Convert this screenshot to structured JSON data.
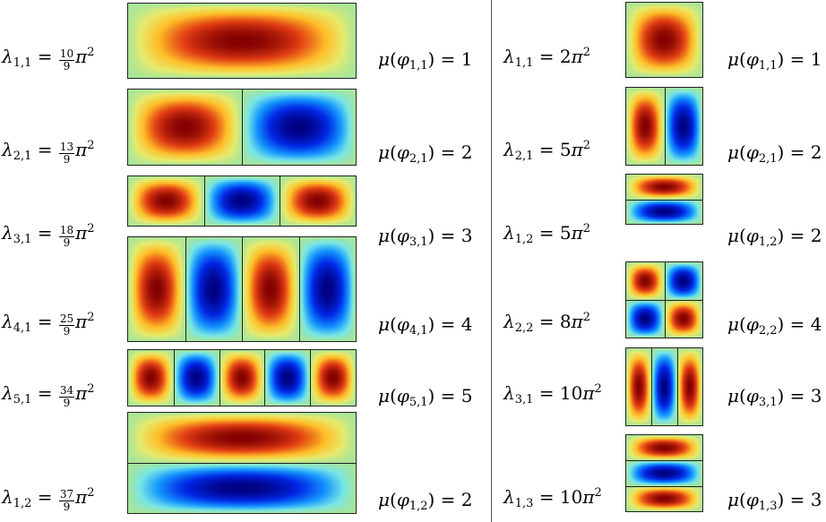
{
  "left_panel": {
    "rows": [
      {
        "m": 1,
        "n": 1,
        "eig_sub": "1,1",
        "eig_num": "10",
        "eig_den": "9",
        "mu_sub": "1,1",
        "mu_value": "1"
      },
      {
        "m": 2,
        "n": 1,
        "eig_sub": "2,1",
        "eig_num": "13",
        "eig_den": "9",
        "mu_sub": "2,1",
        "mu_value": "2"
      },
      {
        "m": 3,
        "n": 1,
        "eig_sub": "3,1",
        "eig_num": "18",
        "eig_den": "9",
        "mu_sub": "3,1",
        "mu_value": "3"
      },
      {
        "m": 4,
        "n": 1,
        "eig_sub": "4,1",
        "eig_num": "25",
        "eig_den": "9",
        "mu_sub": "4,1",
        "mu_value": "4"
      },
      {
        "m": 5,
        "n": 1,
        "eig_sub": "5,1",
        "eig_num": "34",
        "eig_den": "9",
        "mu_sub": "5,1",
        "mu_value": "5"
      },
      {
        "m": 1,
        "n": 2,
        "eig_sub": "1,2",
        "eig_num": "37",
        "eig_den": "9",
        "mu_sub": "1,2",
        "mu_value": "2"
      }
    ]
  },
  "right_panel": {
    "rows": [
      {
        "m": 1,
        "n": 1,
        "eig_sub": "1,1",
        "eig_coef": "2",
        "mu_sub": "1,1",
        "mu_value": "1"
      },
      {
        "m": 2,
        "n": 1,
        "eig_sub": "2,1",
        "eig_coef": "5",
        "mu_sub": "2,1",
        "mu_value": "2"
      },
      {
        "m": 1,
        "n": 2,
        "eig_sub": "1,2",
        "eig_coef": "5",
        "mu_sub": "1,2",
        "mu_value": "2"
      },
      {
        "m": 2,
        "n": 2,
        "eig_sub": "2,2",
        "eig_coef": "8",
        "mu_sub": "2,2",
        "mu_value": "4"
      },
      {
        "m": 3,
        "n": 1,
        "eig_sub": "3,1",
        "eig_coef": "10",
        "mu_sub": "3,1",
        "mu_value": "3"
      },
      {
        "m": 1,
        "n": 3,
        "eig_sub": "1,3",
        "eig_coef": "10",
        "mu_sub": "1,3",
        "mu_value": "3"
      }
    ]
  },
  "symbols": {
    "lambda": "λ",
    "mu": "μ",
    "phi": "φ",
    "pi": "π",
    "equals": "=",
    "exponent": "2"
  }
}
